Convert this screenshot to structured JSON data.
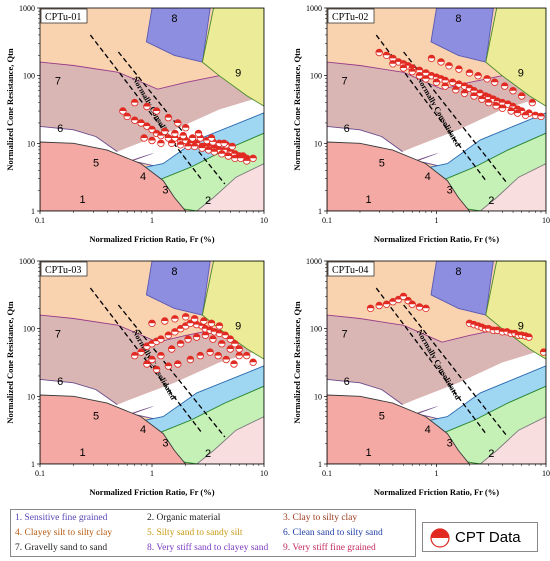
{
  "colors": {
    "z1": "#f4a9a4",
    "z2": "#f8dede",
    "z3": "#c5f0b6",
    "z4": "#9fd6f2",
    "z5": "#ffffff",
    "z6": "#d9b6b4",
    "z7": "#f9d2b0",
    "z8": "#8d8ee0",
    "z9": "#ecec98",
    "data": "#e02a22"
  },
  "chart_data": [
    {
      "type": "scatter",
      "title": "CPTu-01",
      "xlabel": "Normalized Friction Ratio, Fr (%)",
      "ylabel": "Normalized Cone Resistance, Qtn",
      "xscale": "log",
      "yscale": "log",
      "xlim": [
        0.1,
        10
      ],
      "ylim": [
        1,
        1000
      ],
      "xticks": [
        "0.1",
        "1",
        "10"
      ],
      "yticks": [
        "1",
        "10",
        "100",
        "1000"
      ],
      "zones": [
        "1",
        "2",
        "3",
        "4",
        "5",
        "6",
        "7",
        "8",
        "9"
      ],
      "annotation": "Normally Consolidated",
      "series": [
        {
          "name": "CPT Data",
          "x": [
            0.55,
            0.6,
            0.7,
            0.8,
            0.9,
            1.0,
            1.1,
            1.2,
            1.4,
            1.6,
            1.8,
            2.0,
            2.2,
            2.5,
            2.8,
            3.0,
            3.3,
            3.6,
            4.0,
            4.5,
            5.0,
            5.5,
            6.0,
            6.5,
            7.0,
            8.0,
            0.85,
            1.0,
            1.2,
            1.5,
            1.8,
            2.1,
            2.4,
            2.8,
            3.2,
            3.6,
            4.2,
            4.8,
            5.5,
            6.2,
            7.0,
            1.3,
            1.6,
            1.9,
            2.3,
            2.7,
            3.1,
            3.5,
            4.0,
            4.6,
            5.2,
            0.7,
            0.9,
            1.1,
            1.4,
            1.7,
            2.0,
            2.6,
            3.4,
            4.4
          ],
          "y": [
            30,
            25,
            22,
            20,
            18,
            16,
            14,
            13,
            12,
            12,
            11,
            11,
            10,
            10,
            9,
            9,
            9,
            8.5,
            8,
            8,
            7.5,
            7,
            6.5,
            6.5,
            6,
            6,
            12,
            11,
            10,
            10,
            9.5,
            9,
            9,
            8.5,
            8,
            7.5,
            7,
            6.5,
            6,
            6,
            5.5,
            15,
            14,
            13,
            12,
            12,
            11,
            10.5,
            10,
            9.5,
            9,
            40,
            35,
            30,
            24,
            20,
            17,
            14,
            12,
            10
          ]
        }
      ]
    },
    {
      "type": "scatter",
      "title": "CPTu-02",
      "xlabel": "Normalized Friction Ratio, Fr (%)",
      "ylabel": "Normalized Cone Resistance, Qtn",
      "xscale": "log",
      "yscale": "log",
      "xlim": [
        0.1,
        10
      ],
      "ylim": [
        1,
        1000
      ],
      "xticks": [
        "0.1",
        "1",
        "10"
      ],
      "yticks": [
        "1",
        "10",
        "100",
        "1000"
      ],
      "zones": [
        "1",
        "2",
        "3",
        "4",
        "5",
        "6",
        "7",
        "8",
        "9"
      ],
      "annotation": "Normally Consolidated",
      "series": [
        {
          "name": "CPT Data",
          "x": [
            0.3,
            0.35,
            0.4,
            0.45,
            0.5,
            0.55,
            0.6,
            0.7,
            0.8,
            0.9,
            1.0,
            1.1,
            1.2,
            1.4,
            1.6,
            1.8,
            2.0,
            2.2,
            2.5,
            2.8,
            3.0,
            3.3,
            3.6,
            4.0,
            4.5,
            5.0,
            5.5,
            6.0,
            7.0,
            8.0,
            9.0,
            0.4,
            0.5,
            0.6,
            0.7,
            0.8,
            1.0,
            1.2,
            1.5,
            1.8,
            2.2,
            2.6,
            3.0,
            3.5,
            4.0,
            4.8,
            5.5,
            6.5,
            0.9,
            1.1,
            1.3,
            1.6,
            2.0,
            2.4,
            2.9,
            3.4,
            4.2,
            5.0,
            6.0,
            7.5
          ],
          "y": [
            220,
            200,
            180,
            160,
            150,
            140,
            130,
            120,
            110,
            100,
            95,
            90,
            85,
            80,
            75,
            70,
            65,
            60,
            55,
            50,
            48,
            45,
            42,
            40,
            38,
            35,
            32,
            30,
            28,
            26,
            25,
            150,
            130,
            115,
            100,
            90,
            80,
            70,
            62,
            55,
            50,
            45,
            40,
            36,
            33,
            30,
            28,
            26,
            180,
            160,
            140,
            125,
            110,
            100,
            90,
            80,
            70,
            60,
            50,
            40
          ]
        }
      ]
    },
    {
      "type": "scatter",
      "title": "CPTu-03",
      "xlabel": "Normalized Friction Ratio, Fr (%)",
      "ylabel": "Normalized Cone Resistance, Qtn",
      "xscale": "log",
      "yscale": "log",
      "xlim": [
        0.1,
        10
      ],
      "ylim": [
        1,
        1000
      ],
      "xticks": [
        "0.1",
        "1",
        "10"
      ],
      "yticks": [
        "1",
        "10",
        "100",
        "1000"
      ],
      "zones": [
        "1",
        "2",
        "3",
        "4",
        "5",
        "6",
        "7",
        "8",
        "9"
      ],
      "annotation": "Normally Consolidated",
      "series": [
        {
          "name": "CPT Data",
          "x": [
            0.7,
            0.8,
            0.9,
            1.0,
            1.1,
            1.2,
            1.4,
            1.6,
            1.8,
            2.0,
            2.2,
            2.5,
            2.8,
            3.0,
            3.3,
            3.6,
            4.0,
            4.5,
            5.0,
            5.5,
            6.0,
            7.0,
            8.0,
            0.9,
            1.0,
            1.2,
            1.5,
            1.8,
            2.1,
            2.5,
            3.0,
            3.5,
            4.2,
            5.0,
            6.0,
            1.0,
            1.3,
            1.6,
            2.0,
            2.4,
            2.9,
            3.4,
            4.0,
            1.1,
            1.4,
            1.7,
            2.2,
            2.7,
            3.3,
            3.9,
            4.6,
            5.4
          ],
          "y": [
            40,
            45,
            55,
            60,
            65,
            70,
            80,
            90,
            100,
            110,
            120,
            115,
            110,
            100,
            95,
            90,
            85,
            80,
            70,
            60,
            50,
            40,
            32,
            30,
            35,
            40,
            50,
            60,
            70,
            75,
            80,
            70,
            60,
            50,
            40,
            120,
            130,
            140,
            150,
            140,
            130,
            120,
            110,
            25,
            28,
            30,
            35,
            40,
            45,
            40,
            35,
            30
          ]
        }
      ]
    },
    {
      "type": "scatter",
      "title": "CPTu-04",
      "xlabel": "Normalized Friction Ratio, Fr (%)",
      "ylabel": "Normalized Cone Resistance, Qtn",
      "xscale": "log",
      "yscale": "log",
      "xlim": [
        0.1,
        10
      ],
      "ylim": [
        1,
        1000
      ],
      "xticks": [
        "0.1",
        "1",
        "10"
      ],
      "yticks": [
        "1",
        "10",
        "100",
        "1000"
      ],
      "zones": [
        "1",
        "2",
        "3",
        "4",
        "5",
        "6",
        "7",
        "8",
        "9"
      ],
      "annotation": "Normally Consolidated",
      "series": [
        {
          "name": "CPT Data",
          "x": [
            0.25,
            0.3,
            0.35,
            0.4,
            0.45,
            0.5,
            0.55,
            0.6,
            0.7,
            0.8,
            2.0,
            2.2,
            2.4,
            2.6,
            2.8,
            3.0,
            3.3,
            3.6,
            4.0,
            4.4,
            4.8,
            5.2,
            5.6,
            6.0,
            6.5,
            7.0,
            9.5
          ],
          "y": [
            200,
            220,
            230,
            250,
            270,
            300,
            260,
            230,
            210,
            200,
            120,
            115,
            110,
            105,
            100,
            100,
            95,
            95,
            90,
            90,
            85,
            85,
            80,
            80,
            78,
            75,
            45
          ]
        }
      ]
    }
  ],
  "legend": {
    "items": [
      {
        "label": "1. Sensitive fine grained",
        "color": "#5a46b4"
      },
      {
        "label": "2. Organic material",
        "color": "#222222"
      },
      {
        "label": "3. Clay to silty clay",
        "color": "#9a3b1e"
      },
      {
        "label": "4. Clayey silt to silty clay",
        "color": "#b85a10"
      },
      {
        "label": "5. Silty sand to sandy silt",
        "color": "#c89a14"
      },
      {
        "label": "6. Clean sand to silty sand",
        "color": "#1f3fa8"
      },
      {
        "label": "7. Gravelly sand to sand",
        "color": "#222222"
      },
      {
        "label": "8. Very stiff sand to clayey sand",
        "color": "#7a3ac0"
      },
      {
        "label": "9. Very stiff fine grained",
        "color": "#c42a5c"
      }
    ],
    "marker_label": "CPT Data"
  }
}
